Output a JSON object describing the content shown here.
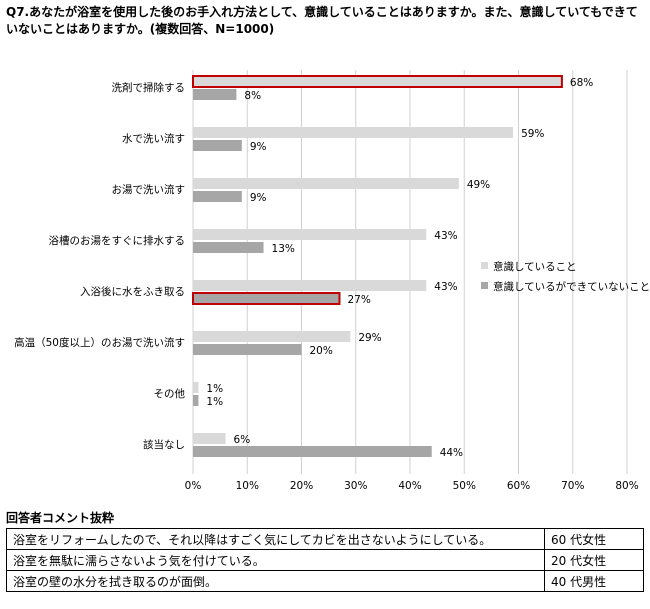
{
  "question": "Q7.あなたが浴室を使用した後のお手入れ方法として、意識していることはありますか。また、意識していてもできていないことはありますか。(複数回答、N=1000)",
  "chart_data": {
    "type": "bar",
    "orientation": "horizontal",
    "categories": [
      "洗剤で掃除する",
      "水で洗い流す",
      "お湯で洗い流す",
      "浴槽のお湯をすぐに排水する",
      "入浴後に水をふき取る",
      "高温（50度以上）のお湯で洗い流す",
      "その他",
      "該当なし"
    ],
    "series": [
      {
        "name": "意識していること",
        "color": "#d9d9d9",
        "values": [
          68,
          59,
          49,
          43,
          43,
          29,
          1,
          6
        ]
      },
      {
        "name": "意識しているができていないこと",
        "color": "#a6a6a6",
        "values": [
          8,
          9,
          9,
          13,
          27,
          20,
          1,
          44
        ]
      }
    ],
    "value_labels": [
      [
        "68%",
        "59%",
        "49%",
        "43%",
        "43%",
        "29%",
        "1%",
        "6%"
      ],
      [
        "8%",
        "9%",
        "9%",
        "13%",
        "27%",
        "20%",
        "1%",
        "44%"
      ]
    ],
    "highlighted_bars": [
      {
        "series": 0,
        "category": 0
      },
      {
        "series": 1,
        "category": 4
      }
    ],
    "highlight_color": "#c00000",
    "xlim": [
      0,
      80
    ],
    "xticks": [
      "0%",
      "10%",
      "20%",
      "30%",
      "40%",
      "50%",
      "60%",
      "70%",
      "80%"
    ],
    "grid": true,
    "legend_position": "right",
    "gridline_color": "#d0d0d0"
  },
  "comments": {
    "title": "回答者コメント抜粋",
    "rows": [
      {
        "text": "浴室をリフォームしたので、それ以降はすごく気にしてカビを出さないようにしている。",
        "meta": "60 代女性"
      },
      {
        "text": "浴室を無駄に濡らさないよう気を付けている。",
        "meta": "20 代女性"
      },
      {
        "text": "浴室の壁の水分を拭き取るのが面倒。",
        "meta": "40 代男性"
      }
    ]
  }
}
